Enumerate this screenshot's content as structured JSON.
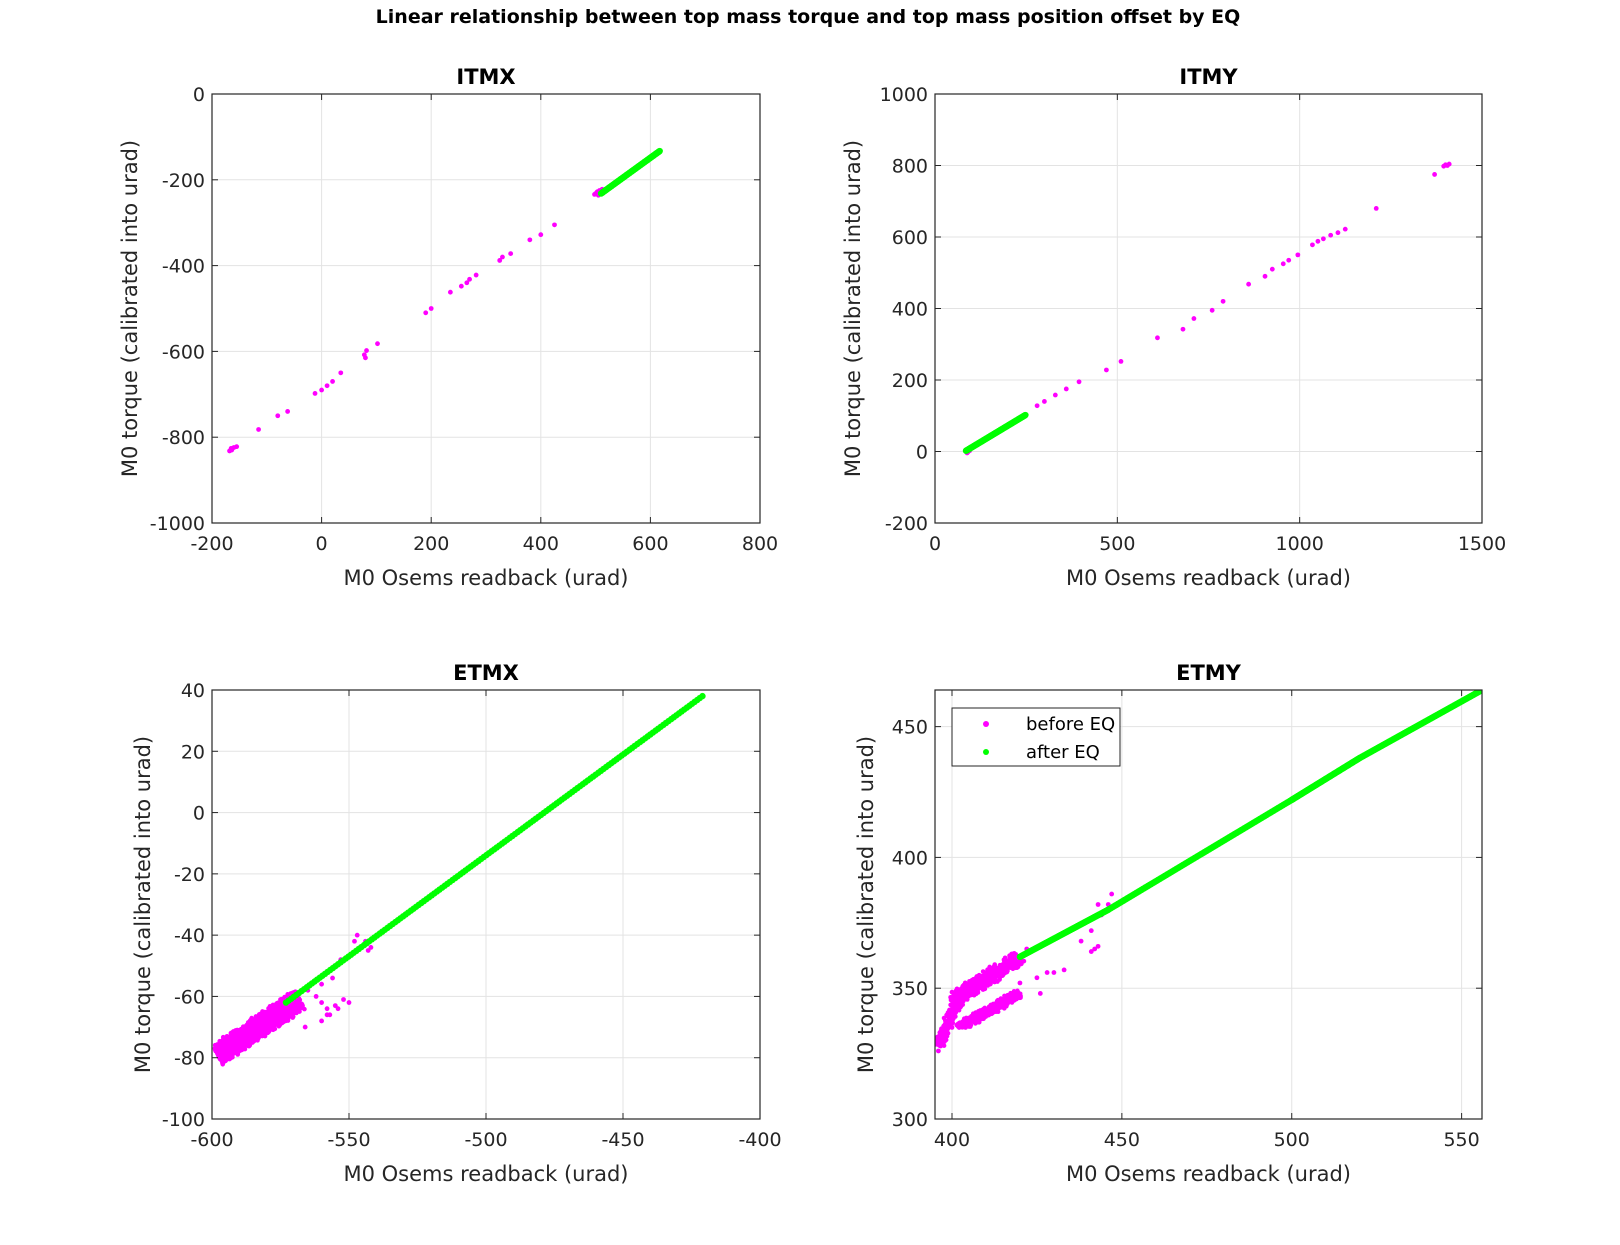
{
  "figure": {
    "title": "Linear relationship between top mass torque and top mass position offset by EQ"
  },
  "colors": {
    "before": "#ff00ff",
    "after": "#00ff00",
    "grid": "#e3e3e3",
    "axis": "#262626"
  },
  "legend": {
    "location": "top-left",
    "entries": [
      "before EQ",
      "after EQ"
    ]
  },
  "chart_data": [
    {
      "type": "scatter",
      "title": "ITMX",
      "xlabel": "M0 Osems readback (urad)",
      "ylabel": "M0 torque (calibrated into urad)",
      "xlim": [
        -200,
        800
      ],
      "ylim": [
        -1000,
        0
      ],
      "xticks": [
        -200,
        0,
        200,
        400,
        600,
        800
      ],
      "yticks": [
        -1000,
        -800,
        -600,
        -400,
        -200,
        0
      ],
      "grid": true,
      "series": [
        {
          "name": "before EQ",
          "color": "#ff00ff",
          "points": [
            [
              -168,
              -832
            ],
            [
              -165,
              -826
            ],
            [
              -160,
              -824
            ],
            [
              -155,
              -822
            ],
            [
              -164,
              -830
            ],
            [
              -115,
              -782
            ],
            [
              -80,
              -750
            ],
            [
              -62,
              -740
            ],
            [
              -12,
              -698
            ],
            [
              0,
              -690
            ],
            [
              10,
              -680
            ],
            [
              20,
              -670
            ],
            [
              35,
              -650
            ],
            [
              78,
              -608
            ],
            [
              82,
              -598
            ],
            [
              80,
              -615
            ],
            [
              102,
              -582
            ],
            [
              190,
              -510
            ],
            [
              200,
              -500
            ],
            [
              235,
              -462
            ],
            [
              255,
              -448
            ],
            [
              265,
              -440
            ],
            [
              270,
              -432
            ],
            [
              282,
              -422
            ],
            [
              325,
              -388
            ],
            [
              330,
              -380
            ],
            [
              345,
              -372
            ],
            [
              380,
              -340
            ],
            [
              400,
              -328
            ],
            [
              425,
              -305
            ],
            [
              500,
              -232
            ],
            [
              503,
              -228
            ],
            [
              507,
              -225
            ],
            [
              510,
              -230
            ],
            [
              512,
              -222
            ],
            [
              505,
              -236
            ],
            [
              498,
              -234
            ]
          ]
        },
        {
          "name": "after EQ",
          "color": "#00ff00",
          "line": [
            [
              510,
              -232
            ],
            [
              617,
              -133
            ]
          ]
        }
      ]
    },
    {
      "type": "scatter",
      "title": "ITMY",
      "xlabel": "M0 Osems readback (urad)",
      "ylabel": "M0 torque (calibrated into urad)",
      "xlim": [
        0,
        1500
      ],
      "ylim": [
        -200,
        1000
      ],
      "xticks": [
        0,
        500,
        1000,
        1500
      ],
      "yticks": [
        -200,
        0,
        200,
        400,
        600,
        800,
        1000
      ],
      "grid": true,
      "series": [
        {
          "name": "before EQ",
          "color": "#ff00ff",
          "points": [
            [
              85,
              0
            ],
            [
              90,
              -2
            ],
            [
              95,
              2
            ],
            [
              88,
              -4
            ],
            [
              92,
              3
            ],
            [
              280,
              128
            ],
            [
              300,
              140
            ],
            [
              330,
              158
            ],
            [
              360,
              175
            ],
            [
              395,
              195
            ],
            [
              470,
              228
            ],
            [
              510,
              252
            ],
            [
              610,
              318
            ],
            [
              680,
              342
            ],
            [
              710,
              372
            ],
            [
              760,
              395
            ],
            [
              790,
              420
            ],
            [
              860,
              468
            ],
            [
              905,
              490
            ],
            [
              925,
              510
            ],
            [
              955,
              525
            ],
            [
              970,
              535
            ],
            [
              995,
              550
            ],
            [
              1035,
              578
            ],
            [
              1050,
              588
            ],
            [
              1065,
              595
            ],
            [
              1085,
              605
            ],
            [
              1105,
              612
            ],
            [
              1125,
              622
            ],
            [
              1210,
              680
            ],
            [
              1370,
              775
            ],
            [
              1395,
              798
            ],
            [
              1405,
              800
            ],
            [
              1410,
              804
            ],
            [
              1400,
              802
            ]
          ]
        },
        {
          "name": "after EQ",
          "color": "#00ff00",
          "line": [
            [
              85,
              2
            ],
            [
              248,
              102
            ]
          ]
        }
      ]
    },
    {
      "type": "scatter",
      "title": "ETMX",
      "xlabel": "M0 Osems readback (urad)",
      "ylabel": "M0 torque (calibrated into urad)",
      "xlim": [
        -600,
        -400
      ],
      "ylim": [
        -100,
        40
      ],
      "xticks": [
        -600,
        -550,
        -500,
        -450,
        -400
      ],
      "yticks": [
        -100,
        -80,
        -60,
        -40,
        -20,
        0,
        20,
        40
      ],
      "grid": true,
      "series": [
        {
          "name": "before EQ",
          "color": "#ff00ff",
          "band": {
            "from": [
              -598,
              -79
            ],
            "to": [
              -568,
              -61
            ],
            "halfwidth": 4,
            "count": 1600
          },
          "points": [
            [
              -560,
              -62
            ],
            [
              -555,
              -63
            ],
            [
              -552,
              -61
            ],
            [
              -550,
              -62
            ],
            [
              -558,
              -64
            ],
            [
              -557,
              -66
            ],
            [
              -554,
              -64
            ],
            [
              -560,
              -56
            ],
            [
              -556,
              -54
            ],
            [
              -553,
              -48
            ],
            [
              -546,
              -44
            ],
            [
              -544,
              -42
            ],
            [
              -543,
              -45
            ],
            [
              -542,
              -44
            ],
            [
              -548,
              -42
            ],
            [
              -547,
              -40
            ],
            [
              -565,
              -58
            ],
            [
              -562,
              -60
            ],
            [
              -566,
              -70
            ],
            [
              -560,
              -68
            ],
            [
              -558,
              -66
            ]
          ]
        },
        {
          "name": "after EQ",
          "color": "#00ff00",
          "line": [
            [
              -573,
              -62
            ],
            [
              -421,
              38
            ]
          ]
        }
      ]
    },
    {
      "type": "scatter",
      "title": "ETMY",
      "xlabel": "M0 Osems readback (urad)",
      "ylabel": "M0 torque (calibrated into urad)",
      "xlim": [
        395,
        556
      ],
      "ylim": [
        300,
        464
      ],
      "xticks": [
        400,
        450,
        500,
        550
      ],
      "yticks": [
        300,
        350,
        400,
        450
      ],
      "grid": true,
      "series": [
        {
          "name": "before EQ",
          "color": "#ff00ff",
          "bands": [
            {
              "from": [
                396,
                328
              ],
              "to": [
                402,
                346
              ],
              "halfwidth": 2,
              "count": 200
            },
            {
              "from": [
                400,
                345
              ],
              "to": [
                420,
                362
              ],
              "halfwidth": 3,
              "count": 500
            },
            {
              "from": [
                402,
                335
              ],
              "to": [
                420,
                348
              ],
              "halfwidth": 2,
              "count": 400
            }
          ],
          "points": [
            [
              396,
              326
            ],
            [
              397,
              330
            ],
            [
              398,
              332
            ],
            [
              400,
              335
            ],
            [
              404,
              335
            ],
            [
              408,
              337
            ],
            [
              425,
              354
            ],
            [
              428,
              356
            ],
            [
              430,
              356
            ],
            [
              433,
              357
            ],
            [
              441,
              364
            ],
            [
              442,
              365
            ],
            [
              443,
              366
            ],
            [
              438,
              368
            ],
            [
              441,
              372
            ],
            [
              444,
              378
            ],
            [
              446,
              382
            ],
            [
              447,
              386
            ],
            [
              443,
              382
            ],
            [
              422,
              365
            ],
            [
              420,
              352
            ],
            [
              426,
              348
            ]
          ]
        },
        {
          "name": "after EQ",
          "color": "#00ff00",
          "line": [
            [
              420,
              362
            ],
            [
              446,
              380
            ],
            [
              500,
              422
            ],
            [
              520,
              438
            ],
            [
              556,
              464
            ]
          ]
        }
      ]
    }
  ]
}
